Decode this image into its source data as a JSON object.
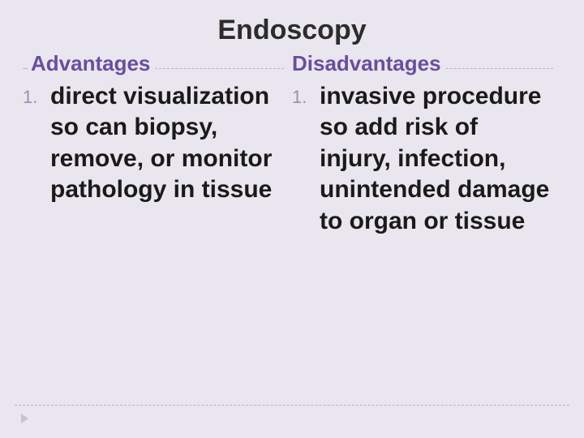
{
  "background_color": "#e9e6ef",
  "title": {
    "text": "Endoscopy",
    "color": "#2c2c2c",
    "fontsize": 34,
    "fontweight": "bold"
  },
  "columns": {
    "header_color": "#6a4e9c",
    "header_fontsize": 26,
    "divider_dash_color": "#b9b4c6",
    "list_number_color": "#9a8fb5",
    "list_number_fontsize": 22,
    "body_color": "#1a1a1a",
    "body_fontsize": 30,
    "body_fontweight": "bold",
    "left": {
      "header": "Advantages",
      "items": [
        {
          "n": "1.",
          "text": "direct visualization  so can biopsy, remove, or monitor pathology in tissue"
        }
      ]
    },
    "right": {
      "header": "Disadvantages",
      "items": [
        {
          "n": "1.",
          "text": "invasive procedure so add risk of injury, infection, unintended damage to organ or tissue"
        }
      ]
    }
  },
  "footer": {
    "dash_color": "#b7b2c4",
    "arrow_color": "#c7c1d4"
  }
}
